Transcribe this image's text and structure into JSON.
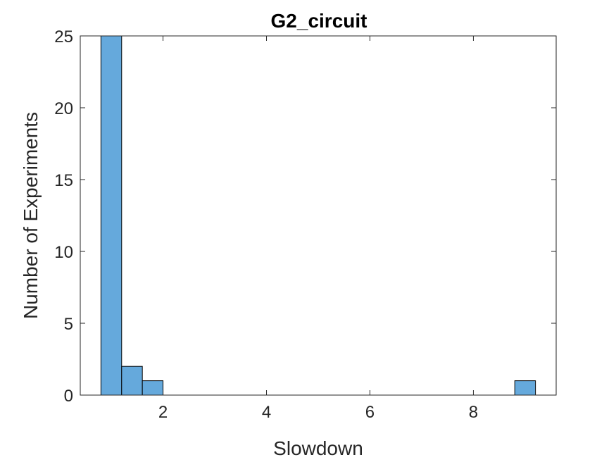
{
  "chart_data": {
    "type": "bar",
    "title": "G2_circuit",
    "xlabel": "Slowdown",
    "ylabel": "Number of Experiments",
    "xlim": [
      0.4,
      9.6
    ],
    "ylim": [
      0,
      25
    ],
    "xticks": [
      2,
      4,
      6,
      8
    ],
    "yticks": [
      0,
      5,
      10,
      15,
      20,
      25
    ],
    "bins": [
      {
        "x0": 0.8,
        "x1": 1.2,
        "count": 25
      },
      {
        "x0": 1.2,
        "x1": 1.6,
        "count": 2
      },
      {
        "x0": 1.6,
        "x1": 2.0,
        "count": 1
      },
      {
        "x0": 8.8,
        "x1": 9.2,
        "count": 1
      }
    ],
    "bar_color": "#65a9dc",
    "grid": false,
    "box": true
  }
}
